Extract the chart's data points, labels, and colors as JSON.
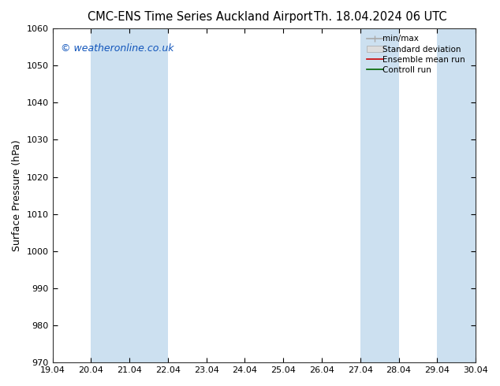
{
  "title_left": "CMC-ENS Time Series Auckland Airport",
  "title_right": "Th. 18.04.2024 06 UTC",
  "ylabel": "Surface Pressure (hPa)",
  "ylim": [
    970,
    1060
  ],
  "yticks": [
    970,
    980,
    990,
    1000,
    1010,
    1020,
    1030,
    1040,
    1050,
    1060
  ],
  "xtick_labels": [
    "19.04",
    "20.04",
    "21.04",
    "22.04",
    "23.04",
    "24.04",
    "25.04",
    "26.04",
    "27.04",
    "28.04",
    "29.04",
    "30.04"
  ],
  "xlim": [
    0,
    11
  ],
  "shade_bands": [
    {
      "x_start": 1,
      "x_end": 3,
      "color": "#cce0f0"
    },
    {
      "x_start": 8,
      "x_end": 9,
      "color": "#cce0f0"
    },
    {
      "x_start": 10,
      "x_end": 11,
      "color": "#cce0f0"
    }
  ],
  "legend_items": [
    {
      "label": "min/max",
      "color": "#aaaaaa",
      "style": "minmax"
    },
    {
      "label": "Standard deviation",
      "color": "#cccccc",
      "style": "stddev"
    },
    {
      "label": "Ensemble mean run",
      "color": "#cc0000",
      "style": "line"
    },
    {
      "label": "Controll run",
      "color": "#006600",
      "style": "line"
    }
  ],
  "watermark": "© weatheronline.co.uk",
  "watermark_color": "#1155bb",
  "background_color": "#ffffff",
  "plot_bg_color": "#ffffff",
  "border_color": "#333333",
  "title_fontsize": 10.5,
  "ylabel_fontsize": 9,
  "tick_fontsize": 8,
  "legend_fontsize": 7.5,
  "watermark_fontsize": 9
}
